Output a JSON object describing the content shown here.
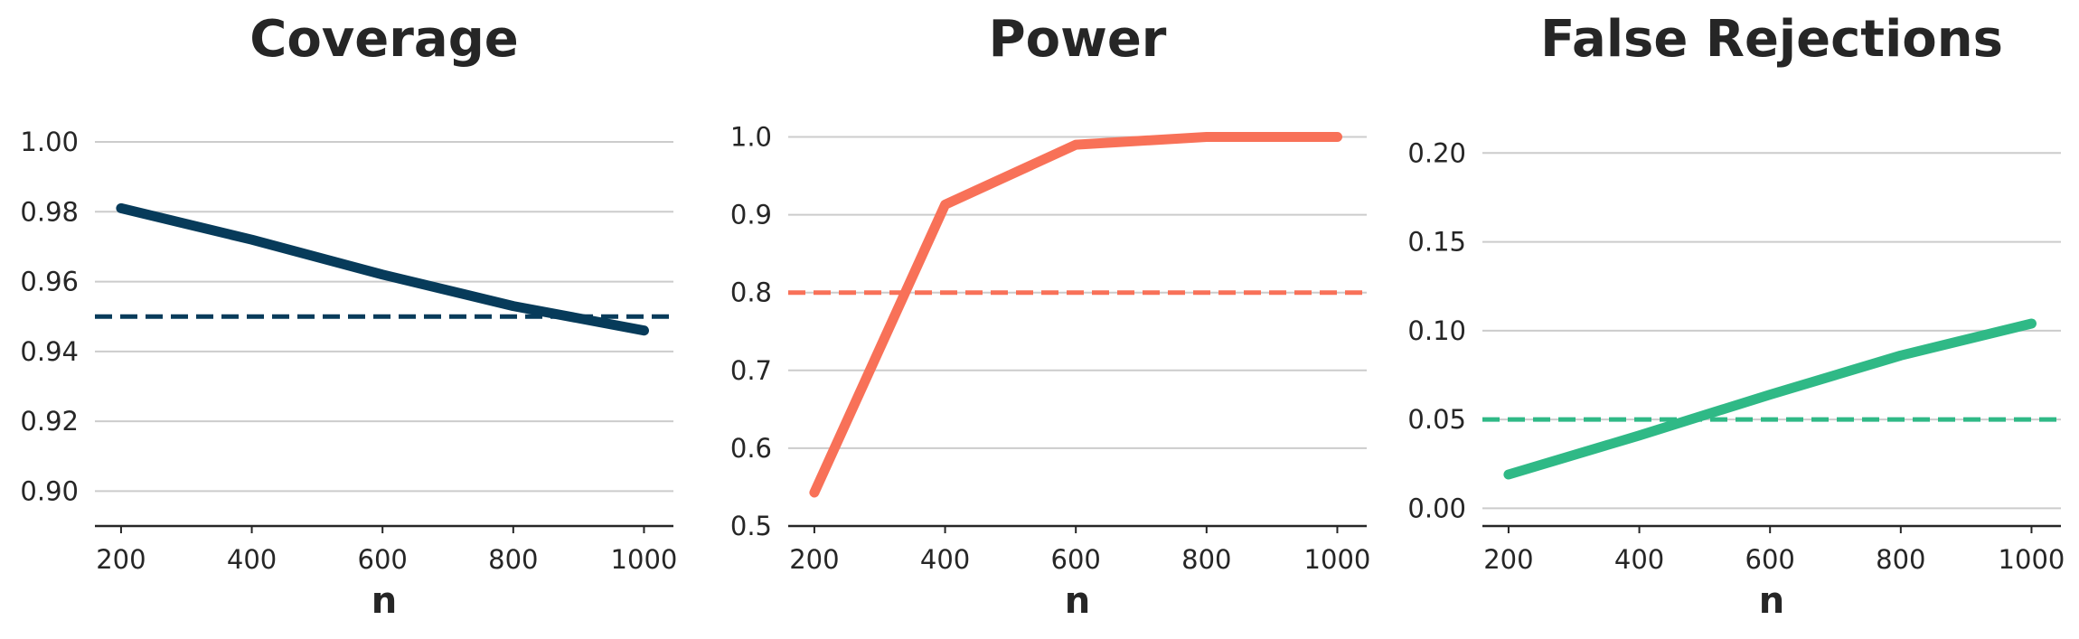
{
  "chart_data": [
    {
      "type": "line",
      "title": "Coverage",
      "xlabel": "n",
      "ylabel": "",
      "x": [
        200,
        400,
        600,
        800,
        1000
      ],
      "xticks": [
        "200",
        "400",
        "600",
        "800",
        "1000"
      ],
      "xlim": [
        160,
        1045
      ],
      "ylim": [
        0.89,
        1.007
      ],
      "yticks": [
        "0.90",
        "0.92",
        "0.94",
        "0.96",
        "0.98",
        "1.00"
      ],
      "ytick_values": [
        0.9,
        0.92,
        0.94,
        0.96,
        0.98,
        1.0
      ],
      "series": [
        {
          "values": [
            0.981,
            0.972,
            0.962,
            0.953,
            0.946
          ],
          "color": "#073b5a"
        }
      ],
      "reference_line": {
        "value": 0.95,
        "color": "#073b5a",
        "style": "dashed"
      },
      "grid": true
    },
    {
      "type": "line",
      "title": "Power",
      "xlabel": "n",
      "ylabel": "",
      "x": [
        200,
        400,
        600,
        800,
        1000
      ],
      "xticks": [
        "200",
        "400",
        "600",
        "800",
        "1000"
      ],
      "xlim": [
        160,
        1045
      ],
      "ylim": [
        0.5,
        1.025
      ],
      "yticks": [
        "0.5",
        "0.6",
        "0.7",
        "0.8",
        "0.9",
        "1.0"
      ],
      "ytick_values": [
        0.5,
        0.6,
        0.7,
        0.8,
        0.9,
        1.0
      ],
      "series": [
        {
          "values": [
            0.543,
            0.913,
            0.99,
            1.0,
            1.0
          ],
          "color": "#f87158"
        }
      ],
      "reference_line": {
        "value": 0.8,
        "color": "#f87158",
        "style": "dashed"
      },
      "grid": true
    },
    {
      "type": "line",
      "title": "False Rejections",
      "xlabel": "n",
      "ylabel": "",
      "x": [
        200,
        400,
        600,
        800,
        1000
      ],
      "xticks": [
        "200",
        "400",
        "600",
        "800",
        "1000"
      ],
      "xlim": [
        160,
        1045
      ],
      "ylim": [
        -0.01,
        0.22
      ],
      "yticks": [
        "0.00",
        "0.05",
        "0.10",
        "0.15",
        "0.20"
      ],
      "ytick_values": [
        0.0,
        0.05,
        0.1,
        0.15,
        0.2
      ],
      "series": [
        {
          "values": [
            0.019,
            0.041,
            0.064,
            0.086,
            0.104
          ],
          "color": "#2fb986"
        }
      ],
      "reference_line": {
        "value": 0.05,
        "color": "#2fb986",
        "style": "dashed"
      },
      "grid": true
    }
  ]
}
